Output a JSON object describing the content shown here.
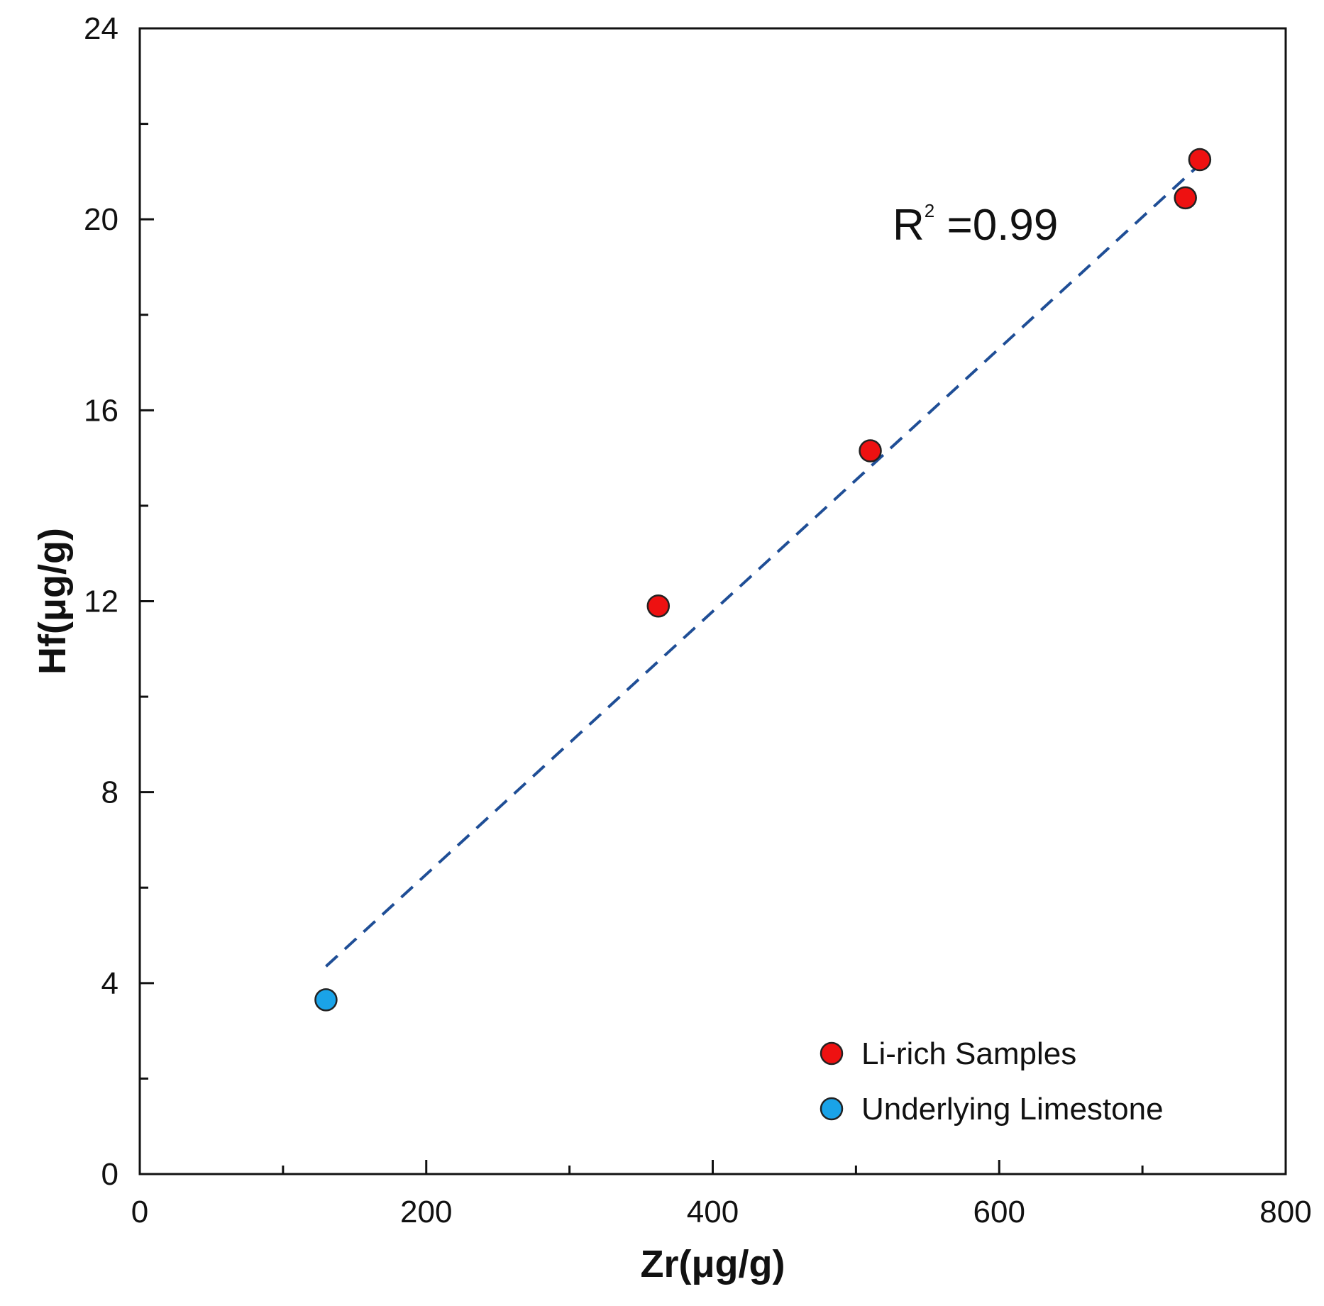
{
  "chart_data": {
    "type": "scatter",
    "xlabel": "Zr(μg/g)",
    "ylabel": "Hf(μg/g)",
    "xlim": [
      0,
      800
    ],
    "ylim": [
      0,
      24
    ],
    "x_ticks": [
      0,
      200,
      400,
      600,
      800
    ],
    "x_minor_ticks": [
      100,
      300,
      500,
      700
    ],
    "y_ticks": [
      0,
      4,
      8,
      12,
      16,
      20,
      24
    ],
    "y_minor_ticks": [
      2,
      6,
      10,
      14,
      18,
      22
    ],
    "grid": false,
    "legend_position": "bottom-right",
    "series": [
      {
        "name": "Li-rich Samples",
        "color": "#ee1111",
        "points": [
          {
            "x": 362,
            "y": 11.9
          },
          {
            "x": 510,
            "y": 15.15
          },
          {
            "x": 730,
            "y": 20.45
          },
          {
            "x": 740,
            "y": 21.25
          }
        ]
      },
      {
        "name": "Underlying Limestone",
        "color": "#1aa3e8",
        "points": [
          {
            "x": 130,
            "y": 3.65
          }
        ]
      }
    ],
    "trendline": {
      "style": "dashed",
      "color": "#1f4e96",
      "from": {
        "x": 130,
        "y": 4.35
      },
      "to": {
        "x": 740,
        "y": 21.15
      }
    },
    "annotation": {
      "base": "R",
      "superscript": "2",
      "equals": " =",
      "value": "0.99"
    }
  }
}
